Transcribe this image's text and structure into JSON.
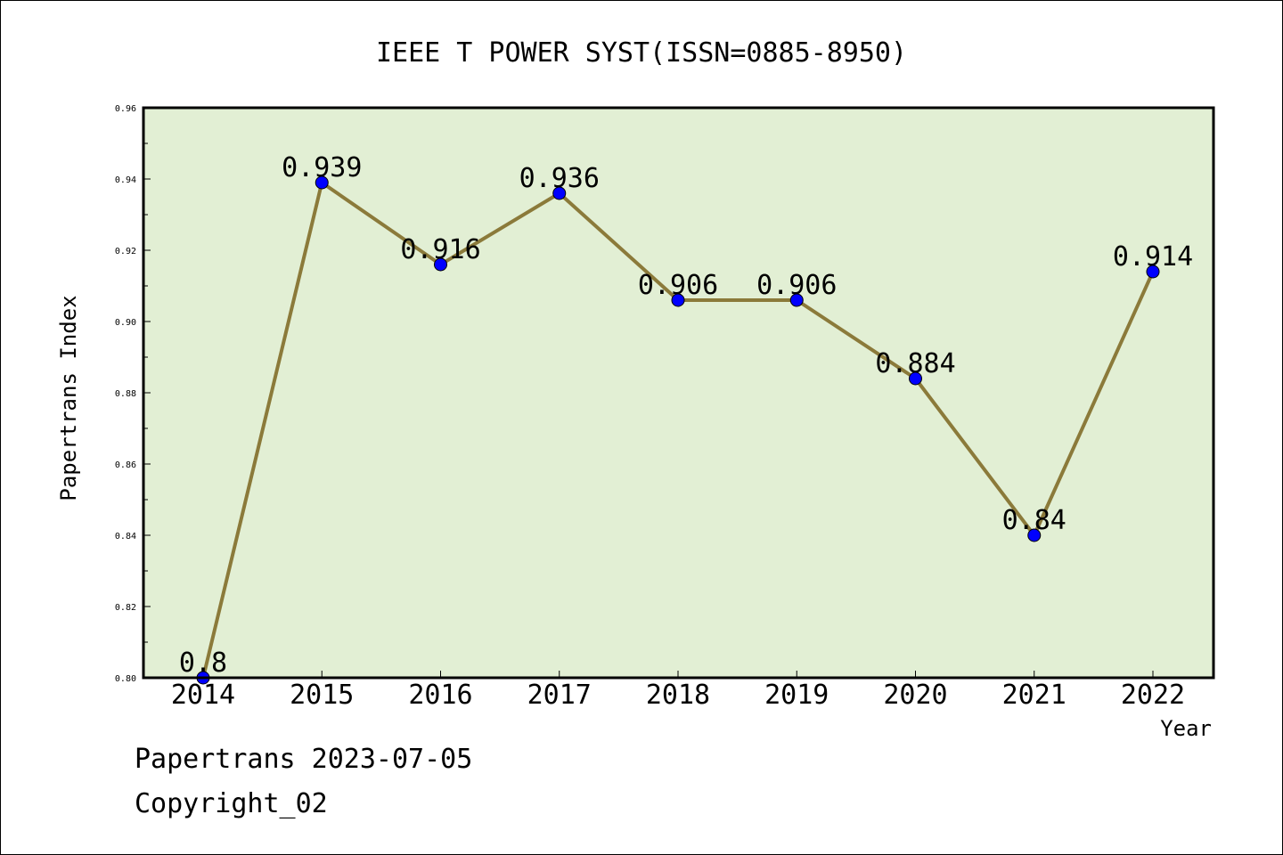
{
  "chart_data": {
    "type": "line",
    "title": "IEEE T POWER SYST(ISSN=0885-8950)",
    "xlabel": "Year",
    "ylabel": "Papertrans Index",
    "categories": [
      "2014",
      "2015",
      "2016",
      "2017",
      "2018",
      "2019",
      "2020",
      "2021",
      "2022"
    ],
    "series": [
      {
        "values": [
          0.8,
          0.939,
          0.916,
          0.936,
          0.906,
          0.906,
          0.884,
          0.84,
          0.914
        ],
        "data_labels": [
          "0.8",
          "0.939",
          "0.916",
          "0.936",
          "0.906",
          "0.906",
          "0.884",
          "0.84",
          "0.914"
        ]
      }
    ],
    "ylim": [
      0.8,
      0.96
    ],
    "yticks": [
      "0.80",
      "0.82",
      "0.84",
      "0.86",
      "0.88",
      "0.90",
      "0.92",
      "0.94",
      "0.96"
    ],
    "grid": false,
    "colors": {
      "plot_background": "#e2efd4",
      "line": "#8b7a3a",
      "marker": "#0000ff",
      "frame": "#000000"
    }
  },
  "footer": {
    "line1": "Papertrans 2023-07-05",
    "line2": "Copyright_02"
  }
}
